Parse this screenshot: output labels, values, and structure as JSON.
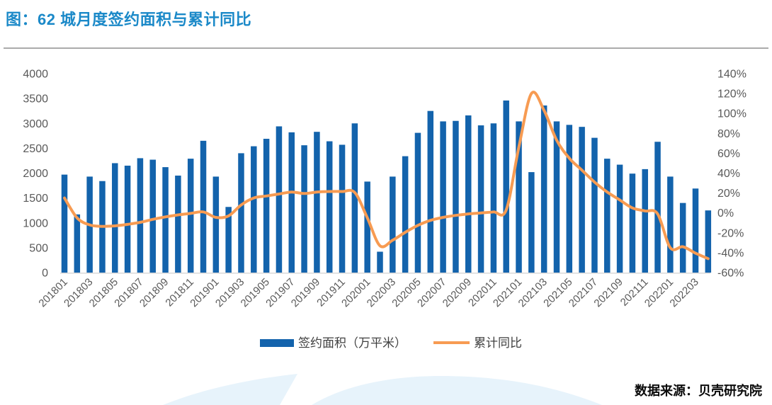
{
  "header": {
    "title": "图：62 城月度签约面积与累计同比"
  },
  "footer": {
    "source": "数据来源：贝壳研究院"
  },
  "legend": {
    "bar_label": "签约面积（万平米）",
    "line_label": "累计同比"
  },
  "colors": {
    "title": "#1b89c8",
    "bar": "#1363ac",
    "line": "#f79b52",
    "axis_text": "#595959",
    "axis_line": "#d9d9d9",
    "divider": "#ababab",
    "swoosh": "#e7f3fb"
  },
  "chart_data": {
    "type": "bar",
    "title": "62 城月度签约面积与累计同比",
    "xlabel": "",
    "ylabel_left": "签约面积（万平米）",
    "ylabel_right": "累计同比",
    "grid": false,
    "legend_position": "bottom",
    "x_label_every": 2,
    "categories": [
      "201801",
      "201802",
      "201803",
      "201804",
      "201805",
      "201806",
      "201807",
      "201808",
      "201809",
      "201810",
      "201811",
      "201812",
      "201901",
      "201902",
      "201903",
      "201904",
      "201905",
      "201906",
      "201907",
      "201908",
      "201909",
      "201910",
      "201911",
      "201912",
      "202001",
      "202002",
      "202003",
      "202004",
      "202005",
      "202006",
      "202007",
      "202008",
      "202009",
      "202010",
      "202011",
      "202012",
      "202101",
      "202102",
      "202103",
      "202104",
      "202105",
      "202106",
      "202107",
      "202108",
      "202109",
      "202110",
      "202111",
      "202112",
      "202201",
      "202202",
      "202203",
      "202204"
    ],
    "series": [
      {
        "name": "签约面积（万平米）",
        "type": "bar",
        "axis": "left",
        "color": "#1363ac",
        "values": [
          1970,
          1170,
          1930,
          1840,
          2200,
          2150,
          2300,
          2270,
          2120,
          1950,
          2290,
          2650,
          1930,
          1320,
          2400,
          2540,
          2690,
          2940,
          2820,
          2560,
          2830,
          2640,
          2570,
          3000,
          1830,
          420,
          1930,
          2340,
          2810,
          3250,
          3040,
          3050,
          3160,
          2960,
          3000,
          3460,
          3040,
          2020,
          3360,
          3040,
          2970,
          2930,
          2710,
          2290,
          2170,
          1990,
          2080,
          2630,
          1930,
          1400,
          1690,
          1250
        ]
      },
      {
        "name": "累计同比",
        "type": "line",
        "axis": "right",
        "color": "#f79b52",
        "values": [
          15,
          -5,
          -12,
          -13.5,
          -13,
          -11.5,
          -9.5,
          -6.5,
          -4,
          -2,
          -0.5,
          1,
          -4.5,
          -3,
          8,
          15,
          17,
          19,
          21,
          19.5,
          21,
          21.5,
          21.5,
          20.5,
          -5,
          -33,
          -27.5,
          -19.5,
          -12.5,
          -7.5,
          -4.5,
          -2.5,
          -1,
          0,
          1,
          3,
          66,
          120,
          103,
          73,
          55,
          43,
          31,
          21,
          13,
          5,
          2,
          -1,
          -35,
          -34,
          -40.5,
          -46
        ]
      }
    ],
    "left_axis": {
      "min": 0,
      "max": 4000,
      "step": 500,
      "ticks": [
        "4000",
        "3500",
        "3000",
        "2500",
        "2000",
        "1500",
        "1000",
        "500",
        "0"
      ]
    },
    "right_axis": {
      "min": -60,
      "max": 140,
      "step": 20,
      "ticks": [
        "140%",
        "120%",
        "100%",
        "80%",
        "60%",
        "40%",
        "20%",
        "0%",
        "-20%",
        "-40%",
        "-60%"
      ]
    }
  }
}
